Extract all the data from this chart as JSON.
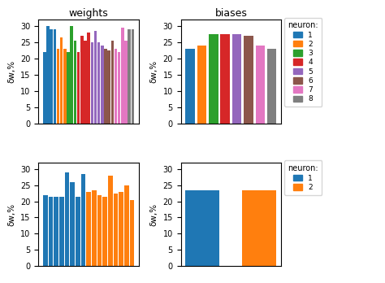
{
  "title_weights": "weights",
  "title_biases": "biases",
  "ylabel": "δw,%",
  "neuron_colors_8": [
    "#1f77b4",
    "#ff7f0e",
    "#2ca02c",
    "#d62728",
    "#9467bd",
    "#8c564b",
    "#e377c2",
    "#7f7f7f"
  ],
  "neuron_labels_8": [
    "1",
    "2",
    "3",
    "4",
    "5",
    "6",
    "7",
    "8"
  ],
  "neuron_colors_2": [
    "#1f77b4",
    "#ff7f0e"
  ],
  "neuron_labels_2": [
    "1",
    "2"
  ],
  "weights_layer1": [
    22.0,
    30.0,
    29.0,
    29.0,
    23.0,
    26.5,
    23.0,
    22.0,
    30.0,
    25.5,
    22.0,
    27.0,
    25.5,
    28.0,
    25.0,
    28.5,
    25.0,
    24.0,
    23.0,
    22.5,
    25.5,
    23.0,
    22.0,
    29.5,
    25.5,
    29.0,
    29.0
  ],
  "weights_layer1_colors": [
    "#1f77b4",
    "#1f77b4",
    "#1f77b4",
    "#1f77b4",
    "#ff7f0e",
    "#ff7f0e",
    "#ff7f0e",
    "#2ca02c",
    "#2ca02c",
    "#2ca02c",
    "#d62728",
    "#d62728",
    "#d62728",
    "#d62728",
    "#9467bd",
    "#9467bd",
    "#9467bd",
    "#9467bd",
    "#8c564b",
    "#8c564b",
    "#8c564b",
    "#e377c2",
    "#e377c2",
    "#e377c2",
    "#e377c2",
    "#7f7f7f",
    "#7f7f7f"
  ],
  "biases_layer1": [
    23.0,
    24.0,
    27.5,
    27.5,
    27.5,
    27.0,
    24.0,
    23.0
  ],
  "weights_layer2": [
    22.0,
    21.5,
    21.5,
    21.5,
    29.0,
    26.0,
    21.5,
    28.5,
    23.0,
    23.5,
    22.0,
    21.5,
    28.0,
    22.5,
    23.0,
    25.0,
    20.5
  ],
  "weights_layer2_colors": [
    "#1f77b4",
    "#1f77b4",
    "#1f77b4",
    "#1f77b4",
    "#1f77b4",
    "#1f77b4",
    "#1f77b4",
    "#1f77b4",
    "#ff7f0e",
    "#ff7f0e",
    "#ff7f0e",
    "#ff7f0e",
    "#ff7f0e",
    "#ff7f0e",
    "#ff7f0e",
    "#ff7f0e",
    "#ff7f0e"
  ],
  "biases_layer2": [
    23.5,
    23.5
  ],
  "biases_layer2_colors": [
    "#1f77b4",
    "#ff7f0e"
  ],
  "ylim": [
    0,
    32
  ],
  "yticks": [
    0,
    5,
    10,
    15,
    20,
    25,
    30
  ]
}
